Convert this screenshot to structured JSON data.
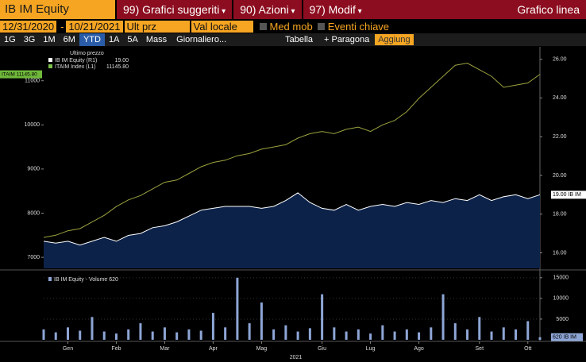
{
  "header": {
    "security": "IB IM Equity",
    "menus": [
      "99) Grafici suggeriti",
      "90) Azioni",
      "97) Modif"
    ],
    "chart_type": "Grafico linea"
  },
  "controls": {
    "start_date": "12/31/2020",
    "separator": "-",
    "end_date": "10/21/2021",
    "price_field": "Ult prz",
    "currency": "Val locale",
    "moving_avg": "Med mob",
    "key_events": "Eventi chiave"
  },
  "toolbar": {
    "periods": [
      "1G",
      "3G",
      "1M",
      "6M",
      "YTD",
      "1A",
      "5A",
      "Mass"
    ],
    "active_period": 4,
    "frequency": "Giornaliero...",
    "table": "Tabella",
    "compare": "+ Paragona",
    "add": "Aggiung"
  },
  "chart_data": [
    {
      "type": "line",
      "legend_title": "Ultimo prezzo",
      "xlim": [
        0,
        41
      ],
      "ylim": [
        6750,
        11750
      ],
      "yticks": [
        7000,
        8000,
        9000,
        10000,
        11000
      ],
      "y2lim": [
        15.2,
        26.6
      ],
      "y2ticks": [
        {
          "value": 16,
          "label": "16.00"
        },
        {
          "value": 18,
          "label": "18.00"
        },
        {
          "value": 20,
          "label": "20.00"
        },
        {
          "value": 22,
          "label": "22.00"
        },
        {
          "value": 24,
          "label": "24.00"
        },
        {
          "value": 26,
          "label": "26.00"
        }
      ],
      "series": [
        {
          "name": "IB IM Equity (R1)",
          "last_label": "19.00",
          "tag": "19.00 IB IM",
          "axis": "y2",
          "color": "#ffffff",
          "fill": "#0c2248",
          "values": [
            16.6,
            16.5,
            16.6,
            16.4,
            16.6,
            16.8,
            16.6,
            16.9,
            17.0,
            17.3,
            17.4,
            17.6,
            17.9,
            18.2,
            18.3,
            18.4,
            18.4,
            18.4,
            18.3,
            18.4,
            18.7,
            19.1,
            18.6,
            18.3,
            18.2,
            18.5,
            18.2,
            18.4,
            18.5,
            18.4,
            18.6,
            18.5,
            18.7,
            18.6,
            18.8,
            18.7,
            19.0,
            18.7,
            18.9,
            19.0,
            18.8,
            19.0
          ]
        },
        {
          "name": "ITAIM Index (L1)",
          "last_label": "11145.80",
          "tag": "ITAIM 11145.80",
          "axis": "y",
          "color": "#9da23e",
          "values": [
            7450,
            7500,
            7600,
            7650,
            7800,
            7950,
            8150,
            8300,
            8400,
            8550,
            8700,
            8750,
            8900,
            9050,
            9150,
            9200,
            9300,
            9350,
            9450,
            9500,
            9550,
            9700,
            9800,
            9850,
            9800,
            9900,
            9950,
            9850,
            10000,
            10100,
            10300,
            10600,
            10850,
            11100,
            11350,
            11400,
            11250,
            11100,
            10850,
            10900,
            10950,
            11145.8
          ]
        }
      ]
    },
    {
      "type": "bar",
      "title": "IB IM Equity - Volume 620",
      "tag": "620 IB IM",
      "color": "#8ea6d6",
      "values": [
        2500,
        1800,
        3000,
        2200,
        5500,
        2000,
        1500,
        2500,
        4000,
        2000,
        3000,
        1800,
        2500,
        2200,
        6500,
        3000,
        15000,
        4000,
        9000,
        2500,
        3500,
        2000,
        2800,
        11000,
        3000,
        2000,
        2500,
        1500,
        3500,
        2000,
        2500,
        1800,
        3000,
        11000,
        4000,
        2500,
        5500,
        2000,
        3000,
        2500,
        4500,
        620
      ],
      "xlim": [
        0,
        41
      ],
      "ylim": [
        0,
        16500
      ],
      "yticks": [
        5000,
        10000,
        15000
      ],
      "xticks": [
        {
          "value": 2,
          "label": "Gen"
        },
        {
          "value": 6,
          "label": "Feb"
        },
        {
          "value": 10,
          "label": "Mar"
        },
        {
          "value": 14,
          "label": "Apr"
        },
        {
          "value": 18,
          "label": "Mag"
        },
        {
          "value": 23,
          "label": "Giu"
        },
        {
          "value": 27,
          "label": "Lug"
        },
        {
          "value": 31,
          "label": "Ago"
        },
        {
          "value": 36,
          "label": "Set"
        },
        {
          "value": 40,
          "label": "Ott"
        }
      ],
      "xlabel": "2021"
    }
  ]
}
